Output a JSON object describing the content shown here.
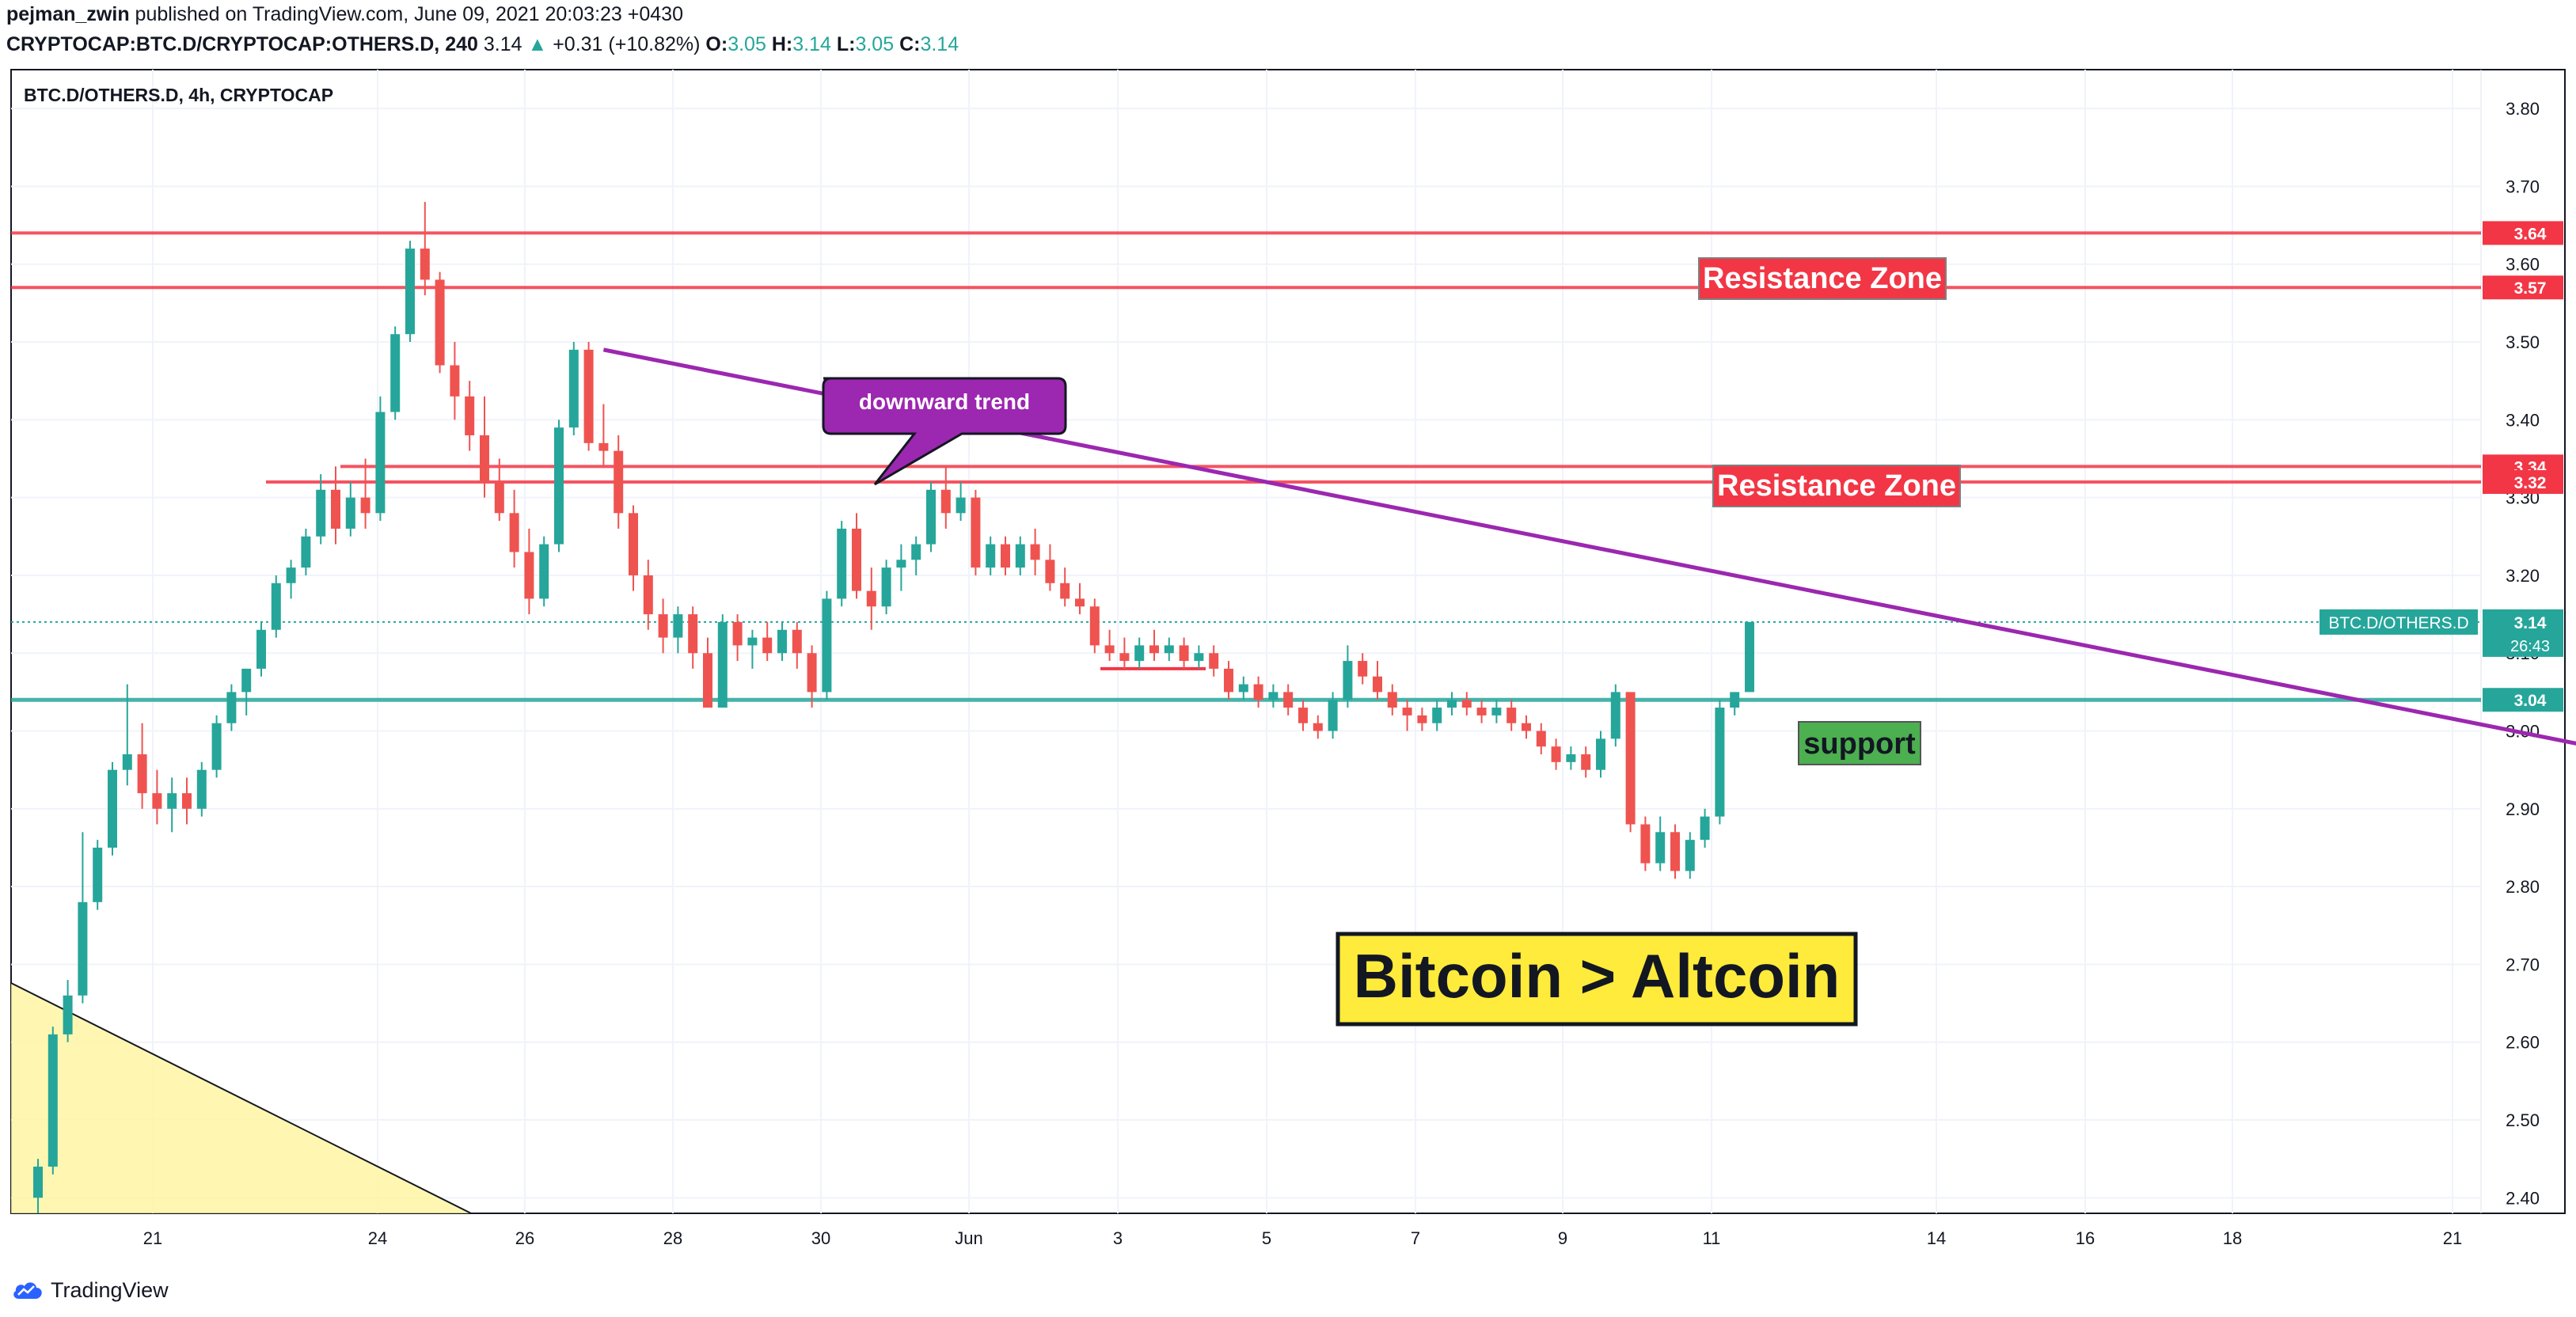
{
  "header": {
    "author": "pejman_zwin",
    "published_text": "published on TradingView.com, June 09, 2021 20:03:23 +0430",
    "symbol_line": "CRYPTOCAP:BTC.D/CRYPTOCAP:OTHERS.D, 240",
    "last": "3.14",
    "change": "+0.31 (+10.82%)",
    "o_label": "O:",
    "o": "3.05",
    "h_label": "H:",
    "h": "3.14",
    "l_label": "L:",
    "l": "3.05",
    "c_label": "C:",
    "c": "3.14"
  },
  "footer": {
    "brand": "TradingView"
  },
  "colors": {
    "up": "#26a69a",
    "down": "#ef5350",
    "trendline": "#9c27b0",
    "resistance": "#f23645",
    "support": "#26a69a",
    "annotation_yellow": "#ffeb3b",
    "support_label_bg": "#4caf50",
    "resistance_label_bg": "#f23645",
    "shaded_area": "#fff59d"
  },
  "chart_data": {
    "type": "candlestick",
    "title": "BTC.D/OTHERS.D, 4h, CRYPTOCAP",
    "timeframe": "4h",
    "ylim": [
      2.38,
      3.85
    ],
    "y_ticks": [
      "3.80",
      "3.70",
      "3.60",
      "3.50",
      "3.40",
      "3.30",
      "3.20",
      "3.10",
      "3.00",
      "2.90",
      "2.80",
      "2.70",
      "2.60",
      "2.50",
      "2.40"
    ],
    "x_ticks": [
      "21",
      "24",
      "26",
      "28",
      "30",
      "Jun",
      "3",
      "5",
      "7",
      "9",
      "11",
      "14",
      "16",
      "18",
      "21"
    ],
    "grid": true,
    "candles": [
      [
        2.4,
        2.45,
        2.38,
        2.44
      ],
      [
        2.44,
        2.62,
        2.43,
        2.61
      ],
      [
        2.61,
        2.68,
        2.6,
        2.66
      ],
      [
        2.66,
        2.87,
        2.65,
        2.78
      ],
      [
        2.78,
        2.86,
        2.77,
        2.85
      ],
      [
        2.85,
        2.96,
        2.84,
        2.95
      ],
      [
        2.95,
        3.06,
        2.93,
        2.97
      ],
      [
        2.97,
        3.01,
        2.9,
        2.92
      ],
      [
        2.92,
        2.95,
        2.88,
        2.9
      ],
      [
        2.9,
        2.94,
        2.87,
        2.92
      ],
      [
        2.92,
        2.94,
        2.88,
        2.9
      ],
      [
        2.9,
        2.96,
        2.89,
        2.95
      ],
      [
        2.95,
        3.02,
        2.94,
        3.01
      ],
      [
        3.01,
        3.06,
        3.0,
        3.05
      ],
      [
        3.05,
        3.08,
        3.02,
        3.08
      ],
      [
        3.08,
        3.14,
        3.07,
        3.13
      ],
      [
        3.13,
        3.2,
        3.12,
        3.19
      ],
      [
        3.19,
        3.22,
        3.17,
        3.21
      ],
      [
        3.21,
        3.26,
        3.2,
        3.25
      ],
      [
        3.25,
        3.33,
        3.24,
        3.31
      ],
      [
        3.31,
        3.34,
        3.24,
        3.26
      ],
      [
        3.26,
        3.32,
        3.25,
        3.3
      ],
      [
        3.3,
        3.35,
        3.26,
        3.28
      ],
      [
        3.28,
        3.43,
        3.27,
        3.41
      ],
      [
        3.41,
        3.52,
        3.4,
        3.51
      ],
      [
        3.51,
        3.63,
        3.5,
        3.62
      ],
      [
        3.62,
        3.68,
        3.56,
        3.58
      ],
      [
        3.58,
        3.59,
        3.46,
        3.47
      ],
      [
        3.47,
        3.5,
        3.4,
        3.43
      ],
      [
        3.43,
        3.45,
        3.36,
        3.38
      ],
      [
        3.38,
        3.43,
        3.3,
        3.32
      ],
      [
        3.32,
        3.35,
        3.27,
        3.28
      ],
      [
        3.28,
        3.31,
        3.21,
        3.23
      ],
      [
        3.23,
        3.26,
        3.15,
        3.17
      ],
      [
        3.17,
        3.25,
        3.16,
        3.24
      ],
      [
        3.24,
        3.4,
        3.23,
        3.39
      ],
      [
        3.39,
        3.5,
        3.38,
        3.49
      ],
      [
        3.49,
        3.5,
        3.36,
        3.37
      ],
      [
        3.37,
        3.42,
        3.34,
        3.36
      ],
      [
        3.36,
        3.38,
        3.26,
        3.28
      ],
      [
        3.28,
        3.29,
        3.18,
        3.2
      ],
      [
        3.2,
        3.22,
        3.13,
        3.15
      ],
      [
        3.15,
        3.17,
        3.1,
        3.12
      ],
      [
        3.12,
        3.16,
        3.1,
        3.15
      ],
      [
        3.15,
        3.16,
        3.08,
        3.1
      ],
      [
        3.1,
        3.12,
        3.03,
        3.03
      ],
      [
        3.03,
        3.15,
        3.03,
        3.14
      ],
      [
        3.14,
        3.15,
        3.09,
        3.11
      ],
      [
        3.11,
        3.13,
        3.08,
        3.12
      ],
      [
        3.12,
        3.14,
        3.09,
        3.1
      ],
      [
        3.1,
        3.14,
        3.09,
        3.13
      ],
      [
        3.13,
        3.14,
        3.08,
        3.1
      ],
      [
        3.1,
        3.11,
        3.03,
        3.05
      ],
      [
        3.05,
        3.18,
        3.04,
        3.17
      ],
      [
        3.17,
        3.27,
        3.16,
        3.26
      ],
      [
        3.26,
        3.28,
        3.17,
        3.18
      ],
      [
        3.18,
        3.21,
        3.13,
        3.16
      ],
      [
        3.16,
        3.22,
        3.15,
        3.21
      ],
      [
        3.21,
        3.24,
        3.18,
        3.22
      ],
      [
        3.22,
        3.25,
        3.2,
        3.24
      ],
      [
        3.24,
        3.32,
        3.23,
        3.31
      ],
      [
        3.31,
        3.34,
        3.26,
        3.28
      ],
      [
        3.28,
        3.32,
        3.27,
        3.3
      ],
      [
        3.3,
        3.31,
        3.2,
        3.21
      ],
      [
        3.21,
        3.25,
        3.2,
        3.24
      ],
      [
        3.24,
        3.25,
        3.2,
        3.21
      ],
      [
        3.21,
        3.25,
        3.2,
        3.24
      ],
      [
        3.24,
        3.26,
        3.2,
        3.22
      ],
      [
        3.22,
        3.24,
        3.18,
        3.19
      ],
      [
        3.19,
        3.21,
        3.16,
        3.17
      ],
      [
        3.17,
        3.19,
        3.15,
        3.16
      ],
      [
        3.16,
        3.17,
        3.1,
        3.11
      ],
      [
        3.11,
        3.13,
        3.09,
        3.1
      ],
      [
        3.1,
        3.12,
        3.08,
        3.09
      ],
      [
        3.09,
        3.12,
        3.08,
        3.11
      ],
      [
        3.11,
        3.13,
        3.09,
        3.1
      ],
      [
        3.1,
        3.12,
        3.09,
        3.11
      ],
      [
        3.11,
        3.12,
        3.08,
        3.09
      ],
      [
        3.09,
        3.11,
        3.08,
        3.1
      ],
      [
        3.1,
        3.11,
        3.07,
        3.08
      ],
      [
        3.08,
        3.09,
        3.04,
        3.05
      ],
      [
        3.05,
        3.07,
        3.04,
        3.06
      ],
      [
        3.06,
        3.07,
        3.03,
        3.04
      ],
      [
        3.04,
        3.06,
        3.03,
        3.05
      ],
      [
        3.05,
        3.06,
        3.02,
        3.03
      ],
      [
        3.03,
        3.04,
        3.0,
        3.01
      ],
      [
        3.01,
        3.02,
        2.99,
        3.0
      ],
      [
        3.0,
        3.05,
        2.99,
        3.04
      ],
      [
        3.04,
        3.11,
        3.03,
        3.09
      ],
      [
        3.09,
        3.1,
        3.06,
        3.07
      ],
      [
        3.07,
        3.09,
        3.04,
        3.05
      ],
      [
        3.05,
        3.06,
        3.02,
        3.03
      ],
      [
        3.03,
        3.04,
        3.0,
        3.02
      ],
      [
        3.02,
        3.03,
        3.0,
        3.01
      ],
      [
        3.01,
        3.04,
        3.0,
        3.03
      ],
      [
        3.03,
        3.05,
        3.02,
        3.04
      ],
      [
        3.04,
        3.05,
        3.02,
        3.03
      ],
      [
        3.03,
        3.04,
        3.01,
        3.02
      ],
      [
        3.02,
        3.04,
        3.01,
        3.03
      ],
      [
        3.03,
        3.04,
        3.0,
        3.01
      ],
      [
        3.01,
        3.02,
        2.99,
        3.0
      ],
      [
        3.0,
        3.01,
        2.97,
        2.98
      ],
      [
        2.98,
        2.99,
        2.95,
        2.96
      ],
      [
        2.96,
        2.98,
        2.95,
        2.97
      ],
      [
        2.97,
        2.98,
        2.94,
        2.95
      ],
      [
        2.95,
        3.0,
        2.94,
        2.99
      ],
      [
        2.99,
        3.06,
        2.98,
        3.05
      ],
      [
        3.05,
        3.05,
        2.87,
        2.88
      ],
      [
        2.88,
        2.89,
        2.82,
        2.83
      ],
      [
        2.83,
        2.89,
        2.82,
        2.87
      ],
      [
        2.87,
        2.88,
        2.81,
        2.82
      ],
      [
        2.82,
        2.87,
        2.81,
        2.86
      ],
      [
        2.86,
        2.9,
        2.85,
        2.89
      ],
      [
        2.89,
        3.04,
        2.88,
        3.03
      ],
      [
        3.03,
        3.05,
        3.02,
        3.05
      ],
      [
        3.05,
        3.14,
        3.05,
        3.14
      ]
    ],
    "horizontal_levels": [
      {
        "value": 3.64,
        "label": "3.64",
        "kind": "resistance"
      },
      {
        "value": 3.57,
        "label": "3.57",
        "kind": "resistance"
      },
      {
        "value": 3.34,
        "label": "3.34",
        "kind": "resistance"
      },
      {
        "value": 3.32,
        "label": "3.32",
        "kind": "resistance"
      },
      {
        "value": 3.04,
        "label": "3.04",
        "kind": "support"
      }
    ],
    "price_tag": {
      "symbol": "BTC.D/OTHERS.D",
      "value": "3.14",
      "countdown": "26:43"
    },
    "trendline": {
      "from": {
        "x_index": 38,
        "y": 3.49
      },
      "to": {
        "x_index": 258,
        "y": 2.65
      }
    },
    "annotations": {
      "downward_trend": "downward trend",
      "resistance_upper": "Resistance Zone",
      "resistance_lower": "Resistance Zone",
      "support": "support",
      "headline": "Bitcoin > Altcoin"
    }
  }
}
